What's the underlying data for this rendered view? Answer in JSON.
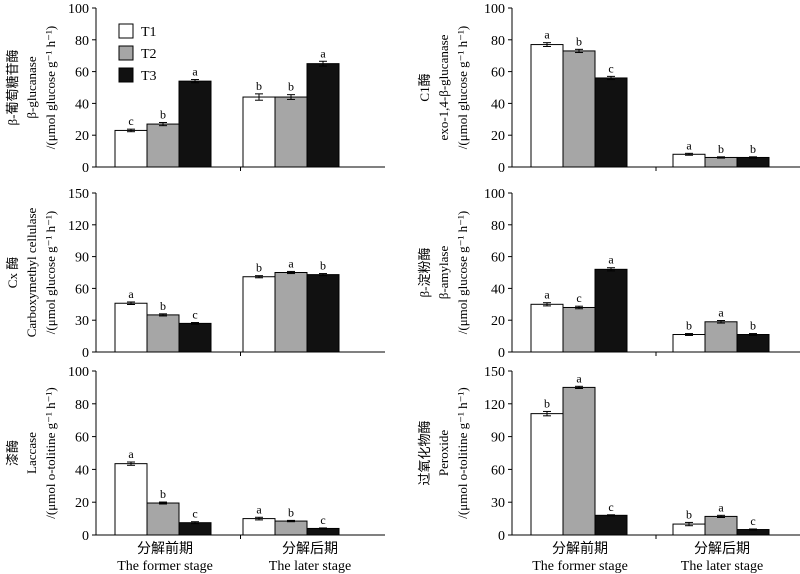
{
  "colors": {
    "T1": "#ffffff",
    "T2": "#a6a6a6",
    "T3": "#111111",
    "stroke": "#000000"
  },
  "legend": [
    "T1",
    "T2",
    "T3"
  ],
  "x_categories": [
    {
      "cn": "分解前期",
      "en": "The former stage"
    },
    {
      "cn": "分解后期",
      "en": "The later stage"
    }
  ],
  "chart_data": [
    {
      "id": "beta-glucanase",
      "type": "bar",
      "ylabel_lines": [
        "β-葡萄糖苷酶",
        "β-glucanase",
        "/(μmol glucose g⁻¹ h⁻¹)"
      ],
      "ylim": [
        0,
        100
      ],
      "yticks": [
        0,
        20,
        40,
        60,
        80,
        100
      ],
      "categories": [
        "分解前期",
        "分解后期"
      ],
      "series": [
        {
          "name": "T1",
          "values": [
            23,
            44
          ],
          "errors": [
            0.8,
            2.0
          ],
          "letters": [
            "c",
            "b"
          ]
        },
        {
          "name": "T2",
          "values": [
            27,
            44
          ],
          "errors": [
            1.0,
            1.5
          ],
          "letters": [
            "b",
            "b"
          ]
        },
        {
          "name": "T3",
          "values": [
            54,
            65
          ],
          "errors": [
            1.0,
            1.5
          ],
          "letters": [
            "a",
            "a"
          ]
        }
      ]
    },
    {
      "id": "c1-enzyme",
      "type": "bar",
      "ylabel_lines": [
        "C1酶",
        "exo-1,4-β-glucanase",
        "/(μmol glucose g⁻¹ h⁻¹)"
      ],
      "ylim": [
        0,
        100
      ],
      "yticks": [
        0,
        20,
        40,
        60,
        80,
        100
      ],
      "categories": [
        "分解前期",
        "分解后期"
      ],
      "series": [
        {
          "name": "T1",
          "values": [
            77,
            8
          ],
          "errors": [
            1.2,
            0.6
          ],
          "letters": [
            "a",
            "a"
          ]
        },
        {
          "name": "T2",
          "values": [
            73,
            6
          ],
          "errors": [
            1.0,
            0.4
          ],
          "letters": [
            "b",
            "b"
          ]
        },
        {
          "name": "T3",
          "values": [
            56,
            6
          ],
          "errors": [
            1.0,
            0.4
          ],
          "letters": [
            "c",
            "b"
          ]
        }
      ]
    },
    {
      "id": "cx-enzyme",
      "type": "bar",
      "ylabel_lines": [
        "Cx 酶",
        "Carboxymethyl cellulase",
        "/(μmol glucose g⁻¹ h⁻¹)"
      ],
      "ylim": [
        0,
        150
      ],
      "yticks": [
        0,
        30,
        60,
        90,
        120,
        150
      ],
      "categories": [
        "分解前期",
        "分解后期"
      ],
      "series": [
        {
          "name": "T1",
          "values": [
            46,
            71
          ],
          "errors": [
            1.2,
            1.0
          ],
          "letters": [
            "a",
            "b"
          ]
        },
        {
          "name": "T2",
          "values": [
            35,
            75
          ],
          "errors": [
            1.0,
            1.0
          ],
          "letters": [
            "b",
            "a"
          ]
        },
        {
          "name": "T3",
          "values": [
            27,
            73
          ],
          "errors": [
            0.8,
            1.0
          ],
          "letters": [
            "c",
            "b"
          ]
        }
      ]
    },
    {
      "id": "beta-amylase",
      "type": "bar",
      "ylabel_lines": [
        "β-淀粉酶",
        "β-amylase",
        "/(μmol glucose g⁻¹ h⁻¹)"
      ],
      "ylim": [
        0,
        100
      ],
      "yticks": [
        0,
        20,
        40,
        60,
        80,
        100
      ],
      "categories": [
        "分解前期",
        "分解后期"
      ],
      "series": [
        {
          "name": "T1",
          "values": [
            30,
            11
          ],
          "errors": [
            1.0,
            0.6
          ],
          "letters": [
            "a",
            "b"
          ]
        },
        {
          "name": "T2",
          "values": [
            28,
            19
          ],
          "errors": [
            0.8,
            0.8
          ],
          "letters": [
            "c",
            "a"
          ]
        },
        {
          "name": "T3",
          "values": [
            52,
            11
          ],
          "errors": [
            1.0,
            0.6
          ],
          "letters": [
            "a",
            "b"
          ]
        }
      ]
    },
    {
      "id": "laccase",
      "type": "bar",
      "ylabel_lines": [
        "漆酶",
        "Laccase",
        "/(μmol o-tolitine g⁻¹ h⁻¹)"
      ],
      "ylim": [
        0,
        100
      ],
      "yticks": [
        0,
        20,
        40,
        60,
        80,
        100
      ],
      "categories": [
        "分解前期",
        "分解后期"
      ],
      "series": [
        {
          "name": "T1",
          "values": [
            43.5,
            10
          ],
          "errors": [
            1.0,
            0.8
          ],
          "letters": [
            "a",
            "a"
          ]
        },
        {
          "name": "T2",
          "values": [
            19.5,
            8.5
          ],
          "errors": [
            0.6,
            0.4
          ],
          "letters": [
            "b",
            "b"
          ]
        },
        {
          "name": "T3",
          "values": [
            7.5,
            4
          ],
          "errors": [
            0.6,
            0.3
          ],
          "letters": [
            "c",
            "c"
          ]
        }
      ]
    },
    {
      "id": "peroxide",
      "type": "bar",
      "ylabel_lines": [
        "过氧化物酶",
        "Peroxide",
        "/(μmol o-tolitine g⁻¹ h⁻¹)"
      ],
      "ylim": [
        0,
        150
      ],
      "yticks": [
        0,
        30,
        60,
        90,
        120,
        150
      ],
      "categories": [
        "分解前期",
        "分解后期"
      ],
      "series": [
        {
          "name": "T1",
          "values": [
            111,
            10
          ],
          "errors": [
            2.0,
            1.5
          ],
          "letters": [
            "b",
            "b"
          ]
        },
        {
          "name": "T2",
          "values": [
            135,
            17
          ],
          "errors": [
            1.0,
            1.0
          ],
          "letters": [
            "a",
            "a"
          ]
        },
        {
          "name": "T3",
          "values": [
            18,
            5
          ],
          "errors": [
            0.5,
            0.5
          ],
          "letters": [
            "c",
            "c"
          ]
        }
      ]
    }
  ]
}
